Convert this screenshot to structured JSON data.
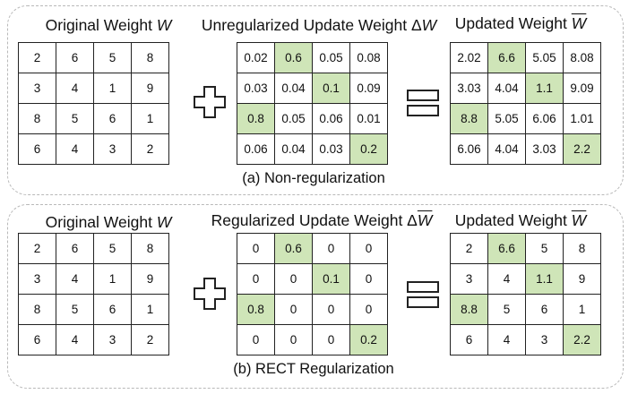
{
  "panels": [
    {
      "caption": "(a) Non-regularization",
      "original": {
        "title": "Original Weight",
        "symbol": "W",
        "cells": [
          [
            "2",
            "6",
            "5",
            "8"
          ],
          [
            "3",
            "4",
            "1",
            "9"
          ],
          [
            "8",
            "5",
            "6",
            "1"
          ],
          [
            "6",
            "4",
            "3",
            "2"
          ]
        ]
      },
      "update": {
        "title": "Unregularized Update Weight Δ",
        "symbol": "W",
        "cells": [
          [
            "0.02",
            "0.6",
            "0.05",
            "0.08"
          ],
          [
            "0.03",
            "0.04",
            "0.1",
            "0.09"
          ],
          [
            "0.8",
            "0.05",
            "0.06",
            "0.01"
          ],
          [
            "0.06",
            "0.04",
            "0.03",
            "0.2"
          ]
        ]
      },
      "updated": {
        "title": "Updated Weight",
        "symbol": "W",
        "cells": [
          [
            "2.02",
            "6.6",
            "5.05",
            "8.08"
          ],
          [
            "3.03",
            "4.04",
            "1.1",
            "9.09"
          ],
          [
            "8.8",
            "5.05",
            "6.06",
            "1.01"
          ],
          [
            "6.06",
            "4.04",
            "3.03",
            "2.2"
          ]
        ]
      }
    },
    {
      "caption": "(b) RECT Regularization",
      "original": {
        "title": "Original Weight",
        "symbol": "W",
        "cells": [
          [
            "2",
            "6",
            "5",
            "8"
          ],
          [
            "3",
            "4",
            "1",
            "9"
          ],
          [
            "8",
            "5",
            "6",
            "1"
          ],
          [
            "6",
            "4",
            "3",
            "2"
          ]
        ]
      },
      "update": {
        "title": "Regularized Update Weight Δ",
        "symbol": "W",
        "cells": [
          [
            "0",
            "0.6",
            "0",
            "0"
          ],
          [
            "0",
            "0",
            "0.1",
            "0"
          ],
          [
            "0.8",
            "0",
            "0",
            "0"
          ],
          [
            "0",
            "0",
            "0",
            "0.2"
          ]
        ]
      },
      "updated": {
        "title": "Updated Weight",
        "symbol": "W",
        "cells": [
          [
            "2",
            "6.6",
            "5",
            "8"
          ],
          [
            "3",
            "4",
            "1.1",
            "9"
          ],
          [
            "8.8",
            "5",
            "6",
            "1"
          ],
          [
            "6",
            "4",
            "3",
            "2.2"
          ]
        ]
      }
    }
  ],
  "highlight_cells": [
    [
      0,
      1
    ],
    [
      1,
      2
    ],
    [
      2,
      0
    ],
    [
      3,
      3
    ]
  ],
  "colors": {
    "highlight": "#cfe5b8",
    "panel_border": "#b9b9b9"
  }
}
